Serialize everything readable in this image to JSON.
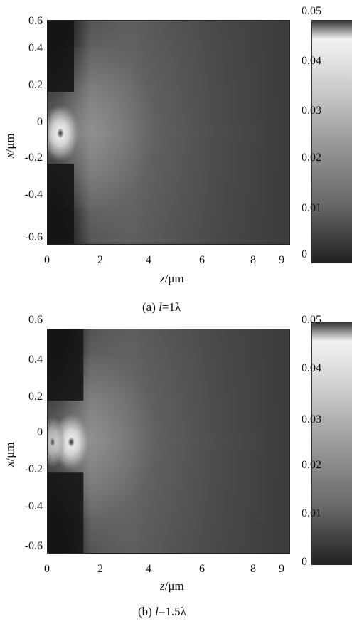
{
  "charts": [
    {
      "id": "a",
      "caption_prefix": "(a) ",
      "caption_var": "l",
      "caption_suffix": "=1λ",
      "xlabel_var": "z",
      "xlabel_unit": "/μm",
      "ylabel_var": "x",
      "ylabel_unit": "/μm",
      "xticks": [
        "0",
        "2",
        "4",
        "6",
        "8",
        "9"
      ],
      "yticks": [
        "0.6",
        "0.4",
        "0.2",
        "0",
        "-0.2",
        "-0.4",
        "-0.6"
      ],
      "cbar_ticks": [
        "0.05",
        "0.04",
        "0.03",
        "0.02",
        "0.01",
        "0"
      ]
    },
    {
      "id": "b",
      "caption_prefix": "(b) ",
      "caption_var": "l",
      "caption_suffix": "=1.5λ",
      "xlabel_var": "z",
      "xlabel_unit": "/μm",
      "ylabel_var": "x",
      "ylabel_unit": "/μm",
      "xticks": [
        "0",
        "2",
        "4",
        "6",
        "8",
        "9"
      ],
      "yticks": [
        "0.6",
        "0.4",
        "0.2",
        "0",
        "-0.2",
        "-0.4",
        "-0.6"
      ],
      "cbar_ticks": [
        "0.05",
        "0.04",
        "0.03",
        "0.02",
        "0.01",
        "0"
      ]
    }
  ],
  "chart_data": [
    {
      "type": "heatmap",
      "x_range": [
        0,
        9
      ],
      "y_range": [
        -0.65,
        0.6
      ],
      "color_range": [
        0,
        0.05
      ],
      "colormap": "grayscale",
      "grid": false,
      "hotspot": {
        "z": 0.5,
        "x": -0.03
      },
      "aperture_x": [
        -0.2,
        0.2
      ]
    },
    {
      "type": "heatmap",
      "x_range": [
        0,
        9
      ],
      "y_range": [
        -0.65,
        0.6
      ],
      "color_range": [
        0,
        0.05
      ],
      "colormap": "grayscale",
      "grid": false,
      "hotspot": {
        "z": 0.9,
        "x": -0.03
      },
      "aperture_x": [
        -0.2,
        0.2
      ]
    }
  ]
}
